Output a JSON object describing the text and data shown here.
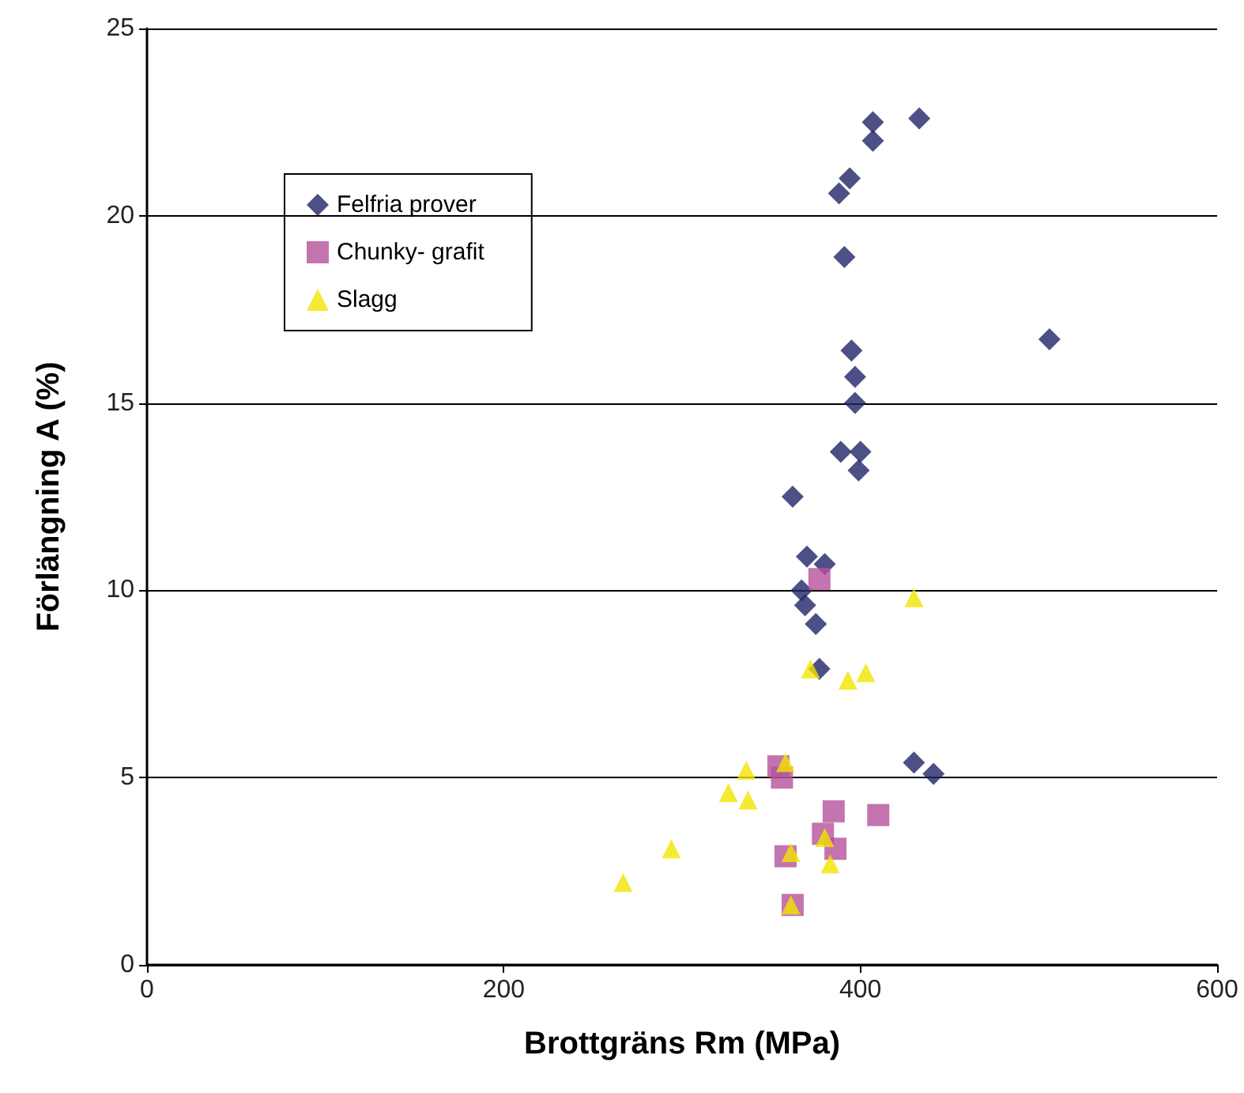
{
  "chart_data": {
    "type": "scatter",
    "xlabel": "Brottgräns Rm (MPa)",
    "ylabel": "Förlängning A (%)",
    "xlim": [
      0,
      600
    ],
    "xticks": [
      0,
      200,
      400,
      600
    ],
    "ylim": [
      0,
      25
    ],
    "yticks": [
      0,
      5,
      10,
      15,
      20,
      25
    ],
    "grid": "y",
    "legend": "top left",
    "series": [
      {
        "name": "Felfria prover",
        "color": "#1f2466",
        "marker": "diamond",
        "x": [
          433,
          407,
          407,
          394,
          388,
          391,
          506,
          395,
          397,
          397,
          389,
          400,
          399,
          362,
          370,
          380,
          367,
          369,
          375,
          377,
          430,
          441
        ],
        "values": [
          22.6,
          22.5,
          22.0,
          21.0,
          20.6,
          18.9,
          16.7,
          16.4,
          15.7,
          15.0,
          13.7,
          13.7,
          13.2,
          12.5,
          10.9,
          10.7,
          10.0,
          9.6,
          9.1,
          7.9,
          5.4,
          5.1
        ]
      },
      {
        "name": "Chunky- grafit",
        "color": "#b5519a",
        "marker": "square",
        "x": [
          377,
          354,
          356,
          385,
          410,
          379,
          386,
          358,
          362
        ],
        "values": [
          10.3,
          5.3,
          5.0,
          4.1,
          4.0,
          3.5,
          3.1,
          2.9,
          1.6
        ]
      },
      {
        "name": "Slagg",
        "color": "#f2e500",
        "marker": "triangle",
        "x": [
          430,
          372,
          403,
          393,
          358,
          336,
          326,
          337,
          380,
          294,
          361,
          383,
          267,
          361
        ],
        "values": [
          9.8,
          7.9,
          7.8,
          7.6,
          5.4,
          5.2,
          4.6,
          4.4,
          3.4,
          3.1,
          3.0,
          2.7,
          2.2,
          1.6
        ]
      }
    ]
  }
}
